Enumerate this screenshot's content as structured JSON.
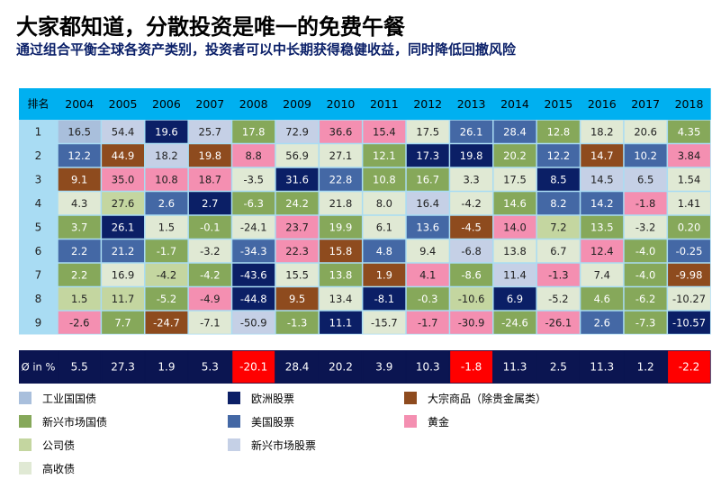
{
  "title": "大家都知道，分散投资是唯一的免费午餐",
  "subtitle": "通过组合平衡全球各资产类别，投资者可以中长期获得稳健收益，同时降低回撤风险",
  "colors": {
    "header_bg": "#00b0f0",
    "row_bg": "#a9dcf3",
    "avg_bg": "#0b1551",
    "avg_negative": "#ff0000",
    "categories": {
      "industrial_gov": "#a9bfdc",
      "em_gov": "#86a85a",
      "corporate": "#c4d6a0",
      "high_yield": "#e0e9d4",
      "euro_equity": "#0b1f66",
      "us_equity": "#4468a5",
      "em_equity": "#c5d0e6",
      "commodities": "#8e4b1e",
      "gold": "#f48fb1"
    },
    "text_on_dark": "#ffffff",
    "text_on_light": "#222222"
  },
  "legend": [
    {
      "key": "industrial_gov",
      "label": "工业国国债"
    },
    {
      "key": "em_gov",
      "label": "新兴市场国债"
    },
    {
      "key": "corporate",
      "label": "公司债"
    },
    {
      "key": "high_yield",
      "label": "高收债"
    },
    {
      "key": "euro_equity",
      "label": "欧洲股票"
    },
    {
      "key": "us_equity",
      "label": "美国股票"
    },
    {
      "key": "em_equity",
      "label": "新兴市场股票"
    },
    {
      "key": "commodities",
      "label": "大宗商品（除贵金属类）"
    },
    {
      "key": "gold",
      "label": "黄金"
    }
  ],
  "chart_data": {
    "type": "table",
    "rank_header": "排名",
    "years": [
      "2004",
      "2005",
      "2006",
      "2007",
      "2008",
      "2009",
      "2010",
      "2011",
      "2012",
      "2013",
      "2014",
      "2015",
      "2016",
      "2017",
      "2018"
    ],
    "ranks": [
      "1",
      "2",
      "3",
      "4",
      "5",
      "6",
      "7",
      "8",
      "9"
    ],
    "avg_label": "Ø in %",
    "columns": [
      {
        "values": [
          "16.5",
          "12.2",
          "9.1",
          "4.3",
          "3.7",
          "2.2",
          "2.2",
          "1.5",
          "-2.6"
        ],
        "cats": [
          "industrial_gov",
          "us_equity",
          "commodities",
          "high_yield",
          "em_gov",
          "us_equity",
          "em_gov",
          "corporate",
          "gold"
        ],
        "avg": "5.5"
      },
      {
        "values": [
          "54.4",
          "44.9",
          "35.0",
          "27.6",
          "26.1",
          "21.2",
          "16.9",
          "11.7",
          "7.7"
        ],
        "cats": [
          "em_equity",
          "commodities",
          "gold",
          "corporate",
          "euro_equity",
          "us_equity",
          "high_yield",
          "corporate",
          "em_gov"
        ],
        "avg": "27.3"
      },
      {
        "values": [
          "19.6",
          "18.2",
          "10.8",
          "2.6",
          "1.5",
          "-1.7",
          "-4.2",
          "-5.2",
          "-24.7"
        ],
        "cats": [
          "euro_equity",
          "em_equity",
          "gold",
          "us_equity",
          "high_yield",
          "em_gov",
          "corporate",
          "em_gov",
          "commodities"
        ],
        "avg": "1.9"
      },
      {
        "values": [
          "25.7",
          "19.8",
          "18.7",
          "2.7",
          "-0.1",
          "-3.2",
          "-4.2",
          "-4.9",
          "-7.1"
        ],
        "cats": [
          "em_equity",
          "commodities",
          "gold",
          "euro_equity",
          "em_gov",
          "high_yield",
          "em_gov",
          "gold",
          "high_yield"
        ],
        "avg": "5.3"
      },
      {
        "values": [
          "17.8",
          "8.8",
          "-3.5",
          "-6.3",
          "-24.1",
          "-34.3",
          "-43.6",
          "-44.8",
          "-50.9"
        ],
        "cats": [
          "em_gov",
          "gold",
          "high_yield",
          "em_gov",
          "high_yield",
          "us_equity",
          "euro_equity",
          "euro_equity",
          "em_equity"
        ],
        "avg": "-20.1"
      },
      {
        "values": [
          "72.9",
          "56.9",
          "31.6",
          "24.2",
          "23.7",
          "22.3",
          "15.5",
          "9.5",
          "-1.3"
        ],
        "cats": [
          "em_equity",
          "high_yield",
          "euro_equity",
          "em_gov",
          "gold",
          "gold",
          "high_yield",
          "commodities",
          "em_gov"
        ],
        "avg": "28.4"
      },
      {
        "values": [
          "36.6",
          "27.1",
          "22.8",
          "21.8",
          "19.9",
          "15.8",
          "13.8",
          "13.4",
          "11.1"
        ],
        "cats": [
          "gold",
          "high_yield",
          "us_equity",
          "high_yield",
          "em_gov",
          "commodities",
          "em_gov",
          "high_yield",
          "euro_equity"
        ],
        "avg": "20.2"
      },
      {
        "values": [
          "15.4",
          "12.1",
          "10.8",
          "8.0",
          "6.1",
          "4.8",
          "1.9",
          "-8.1",
          "-15.7"
        ],
        "cats": [
          "gold",
          "em_gov",
          "em_gov",
          "high_yield",
          "high_yield",
          "us_equity",
          "commodities",
          "euro_equity",
          "high_yield"
        ],
        "avg": "3.9"
      },
      {
        "values": [
          "17.5",
          "17.3",
          "16.7",
          "16.4",
          "13.6",
          "9.4",
          "4.1",
          "-0.3",
          "-1.7"
        ],
        "cats": [
          "high_yield",
          "euro_equity",
          "em_gov",
          "em_equity",
          "us_equity",
          "high_yield",
          "gold",
          "em_gov",
          "gold"
        ],
        "avg": "10.3"
      },
      {
        "values": [
          "26.1",
          "19.8",
          "3.3",
          "-4.2",
          "-4.5",
          "-6.8",
          "-8.6",
          "-10.6",
          "-30.9"
        ],
        "cats": [
          "us_equity",
          "euro_equity",
          "high_yield",
          "high_yield",
          "commodities",
          "em_equity",
          "em_gov",
          "corporate",
          "gold"
        ],
        "avg": "-1.8"
      },
      {
        "values": [
          "28.4",
          "20.2",
          "17.5",
          "14.6",
          "14.0",
          "13.8",
          "11.4",
          "6.9",
          "-24.6"
        ],
        "cats": [
          "us_equity",
          "em_gov",
          "high_yield",
          "em_gov",
          "gold",
          "high_yield",
          "em_equity",
          "euro_equity",
          "em_gov"
        ],
        "avg": "11.3"
      },
      {
        "values": [
          "12.8",
          "12.2",
          "8.5",
          "8.2",
          "7.2",
          "6.7",
          "-1.3",
          "-5.2",
          "-26.1"
        ],
        "cats": [
          "em_gov",
          "us_equity",
          "euro_equity",
          "us_equity",
          "corporate",
          "high_yield",
          "gold",
          "high_yield",
          "gold"
        ],
        "avg": "2.5"
      },
      {
        "values": [
          "18.2",
          "14.7",
          "14.5",
          "14.2",
          "13.5",
          "12.4",
          "7.4",
          "4.6",
          "2.6"
        ],
        "cats": [
          "high_yield",
          "commodities",
          "em_equity",
          "us_equity",
          "em_gov",
          "gold",
          "high_yield",
          "em_gov",
          "us_equity"
        ],
        "avg": "11.3"
      },
      {
        "values": [
          "20.6",
          "10.2",
          "6.5",
          "-1.8",
          "-3.2",
          "-4.0",
          "-4.0",
          "-6.2",
          "-7.3"
        ],
        "cats": [
          "high_yield",
          "us_equity",
          "em_equity",
          "gold",
          "high_yield",
          "em_gov",
          "em_gov",
          "em_gov",
          "em_gov"
        ],
        "avg": "1.2"
      },
      {
        "values": [
          "4.35",
          "3.84",
          "1.54",
          "1.41",
          "0.20",
          "-0.25",
          "-9.98",
          "-10.27",
          "-10.57"
        ],
        "cats": [
          "em_gov",
          "gold",
          "high_yield",
          "high_yield",
          "em_gov",
          "us_equity",
          "commodities",
          "high_yield",
          "euro_equity"
        ],
        "avg": "-2.2"
      }
    ]
  }
}
